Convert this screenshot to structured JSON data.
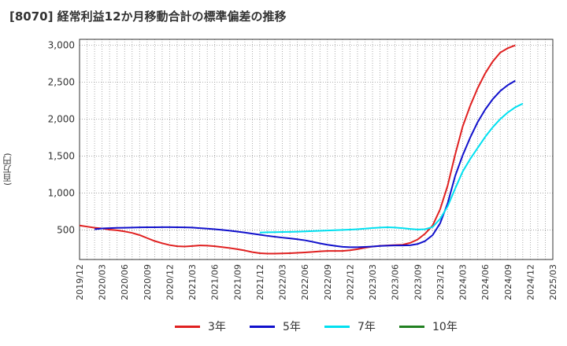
{
  "chart_data": {
    "type": "line",
    "title": "[8070]  経常利益12か月移動合計の標準偏差の推移",
    "ylabel": "(百万円)",
    "xlabel": "",
    "ylim": [
      100,
      3080
    ],
    "y_ticks": [
      500,
      1000,
      1500,
      2000,
      2500,
      3000
    ],
    "y_tick_labels": [
      "500",
      "1,000",
      "1,500",
      "2,000",
      "2,500",
      "3,000"
    ],
    "x_tick_labels": [
      "2019/12",
      "2020/03",
      "2020/06",
      "2020/09",
      "2020/12",
      "2021/03",
      "2021/06",
      "2021/09",
      "2021/12",
      "2022/03",
      "2022/06",
      "2022/09",
      "2022/12",
      "2023/03",
      "2023/06",
      "2023/09",
      "2023/12",
      "2024/03",
      "2024/06",
      "2024/09",
      "2024/12",
      "2025/03"
    ],
    "grid": true,
    "series": [
      {
        "name": "3年",
        "color": "#e02020",
        "start_index": 0,
        "values": [
          560,
          545,
          530,
          520,
          505,
          495,
          480,
          460,
          430,
          390,
          350,
          320,
          295,
          280,
          275,
          282,
          290,
          288,
          280,
          268,
          255,
          240,
          222,
          200,
          185,
          180,
          180,
          182,
          185,
          190,
          196,
          203,
          210,
          216,
          216,
          216,
          225,
          240,
          260,
          275,
          285,
          290,
          295,
          300,
          325,
          370,
          450,
          560,
          780,
          1100,
          1520,
          1900,
          2180,
          2420,
          2620,
          2780,
          2900,
          2960,
          3000
        ]
      },
      {
        "name": "5年",
        "color": "#1010cc",
        "start_index": 2,
        "values": [
          510,
          520,
          525,
          528,
          530,
          532,
          535,
          536,
          537,
          538,
          538,
          537,
          535,
          532,
          525,
          518,
          510,
          500,
          490,
          478,
          465,
          450,
          435,
          420,
          408,
          396,
          386,
          374,
          360,
          340,
          318,
          300,
          285,
          272,
          266,
          266,
          270,
          276,
          283,
          288,
          290,
          290,
          293,
          310,
          350,
          430,
          590,
          860,
          1230,
          1510,
          1750,
          1960,
          2130,
          2270,
          2380,
          2460,
          2520
        ]
      },
      {
        "name": "7年",
        "color": "#00e0f0",
        "start_index": 24,
        "values": [
          465,
          468,
          470,
          472,
          474,
          476,
          480,
          484,
          488,
          492,
          496,
          500,
          504,
          510,
          518,
          526,
          532,
          536,
          532,
          524,
          514,
          506,
          510,
          540,
          650,
          820,
          1060,
          1290,
          1460,
          1610,
          1760,
          1890,
          2000,
          2090,
          2160,
          2210
        ]
      },
      {
        "name": "10年",
        "color": "#208020",
        "start_index": 0,
        "values": []
      }
    ],
    "legend_position": "bottom"
  }
}
